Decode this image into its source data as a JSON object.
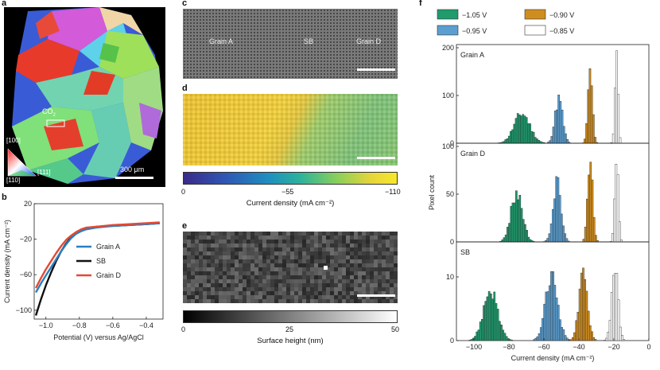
{
  "panels": {
    "a": {
      "label": "a",
      "co2_label": "CO",
      "co2_sub": "2",
      "orient": [
        "[100]",
        "[110]",
        "[111]"
      ],
      "scalebar": "300 μm"
    },
    "b": {
      "label": "b",
      "xlabel": "Potential (V) versus Ag/AgCl",
      "ylabel": "Current density (mA cm⁻²)",
      "legend": [
        "Grain A",
        "SB",
        "Grain D"
      ]
    },
    "c": {
      "label": "c",
      "regions": [
        "Grain A",
        "SB",
        "Grain D"
      ]
    },
    "d": {
      "label": "d",
      "colorbar_ticks": [
        "0",
        "−55",
        "−110"
      ],
      "colorbar_label": "Current density (mA cm⁻²)"
    },
    "e": {
      "label": "e",
      "colorbar_ticks": [
        "0",
        "25",
        "50"
      ],
      "colorbar_label": "Surface height (nm)"
    },
    "f": {
      "label": "f",
      "legend": [
        "−1.05 V",
        "−0.95 V",
        "−0.90 V",
        "−0.85 V"
      ],
      "subpanels": [
        "Grain A",
        "Grain D",
        "SB"
      ],
      "ylabel": "Pixel count",
      "xlabel": "Current density (mA cm⁻²)"
    }
  },
  "chart_data": [
    {
      "type": "line",
      "panel": "b",
      "xlabel": "Potential (V) versus Ag/AgCl",
      "ylabel": "Current density (mA cm⁻²)",
      "xlim": [
        -1.07,
        -0.3
      ],
      "ylim": [
        -110,
        20
      ],
      "xticks": [
        -1.0,
        -0.8,
        -0.6,
        -0.4
      ],
      "xtick_labels": [
        "−1.0",
        "−0.8",
        "−0.6",
        "−0.4"
      ],
      "yticks": [
        20,
        -20,
        -60,
        -100
      ],
      "ytick_labels": [
        "20",
        "−20",
        "−60",
        "−100"
      ],
      "series": [
        {
          "name": "Grain A",
          "color": "#2a7fc4",
          "x": [
            -1.06,
            -1.03,
            -1.0,
            -0.97,
            -0.94,
            -0.91,
            -0.88,
            -0.85,
            -0.82,
            -0.79,
            -0.76,
            -0.7,
            -0.6,
            -0.5,
            -0.4,
            -0.32
          ],
          "y": [
            -80,
            -70,
            -61,
            -52,
            -43,
            -34,
            -26,
            -19,
            -14,
            -11,
            -9,
            -7,
            -5,
            -4,
            -3,
            -2
          ]
        },
        {
          "name": "SB",
          "color": "#111111",
          "x": [
            -1.06,
            -1.03,
            -1.0,
            -0.97,
            -0.94,
            -0.91,
            -0.88,
            -0.85,
            -0.82,
            -0.79,
            -0.76,
            -0.7,
            -0.6,
            -0.5,
            -0.4,
            -0.32
          ],
          "y": [
            -106,
            -88,
            -72,
            -58,
            -45,
            -34,
            -25,
            -18,
            -13,
            -10,
            -8,
            -6,
            -5,
            -4,
            -3,
            -2
          ]
        },
        {
          "name": "Grain D",
          "color": "#e24a33",
          "x": [
            -1.06,
            -1.03,
            -1.0,
            -0.97,
            -0.94,
            -0.91,
            -0.88,
            -0.85,
            -0.82,
            -0.79,
            -0.76,
            -0.7,
            -0.6,
            -0.5,
            -0.4,
            -0.32
          ],
          "y": [
            -75,
            -64,
            -54,
            -45,
            -36,
            -28,
            -21,
            -16,
            -12,
            -9,
            -7,
            -6,
            -4,
            -3,
            -2,
            -1
          ]
        }
      ]
    },
    {
      "type": "histogram",
      "panel": "f",
      "xlabel": "Current density (mA cm⁻²)",
      "ylabel": "Pixel count",
      "xlim": [
        -110,
        0
      ],
      "xticks": [
        -100,
        -80,
        -60,
        -40,
        -20,
        0
      ],
      "xtick_labels": [
        "−100",
        "−80",
        "−60",
        "−40",
        "−20",
        "0"
      ],
      "series_colors": {
        "−1.05 V": "#1f9b6e",
        "−0.95 V": "#5b9fd1",
        "−0.90 V": "#d08d1f",
        "−0.85 V": "#ffffff"
      },
      "subplots": [
        {
          "name": "Grain A",
          "ylim": [
            0,
            200
          ],
          "yticks": [
            0,
            100,
            200
          ],
          "series": [
            {
              "name": "−1.05 V",
              "center": -73,
              "sd": 4.5,
              "peak": 62
            },
            {
              "name": "−0.95 V",
              "center": -52,
              "sd": 2.2,
              "peak": 92
            },
            {
              "name": "−0.90 V",
              "center": -34,
              "sd": 1.3,
              "peak": 150
            },
            {
              "name": "−0.85 V",
              "center": -19,
              "sd": 0.9,
              "peak": 195
            }
          ]
        },
        {
          "name": "Grain D",
          "ylim": [
            0,
            100
          ],
          "yticks": [
            0,
            50,
            100
          ],
          "series": [
            {
              "name": "−1.05 V",
              "center": -76,
              "sd": 3.2,
              "peak": 53
            },
            {
              "name": "−0.95 V",
              "center": -53,
              "sd": 2.3,
              "peak": 62
            },
            {
              "name": "−0.90 V",
              "center": -34,
              "sd": 1.5,
              "peak": 80
            },
            {
              "name": "−0.85 V",
              "center": -19,
              "sd": 1.0,
              "peak": 100
            }
          ]
        },
        {
          "name": "SB",
          "ylim": [
            0,
            15
          ],
          "yticks": [
            0,
            10
          ],
          "series": [
            {
              "name": "−1.05 V",
              "center": -91,
              "sd": 4.0,
              "peak": 8
            },
            {
              "name": "−0.95 V",
              "center": -56,
              "sd": 3.5,
              "peak": 10
            },
            {
              "name": "−0.90 V",
              "center": -38,
              "sd": 2.5,
              "peak": 10
            },
            {
              "name": "−0.85 V",
              "center": -20,
              "sd": 1.8,
              "peak": 12
            }
          ]
        }
      ]
    }
  ]
}
